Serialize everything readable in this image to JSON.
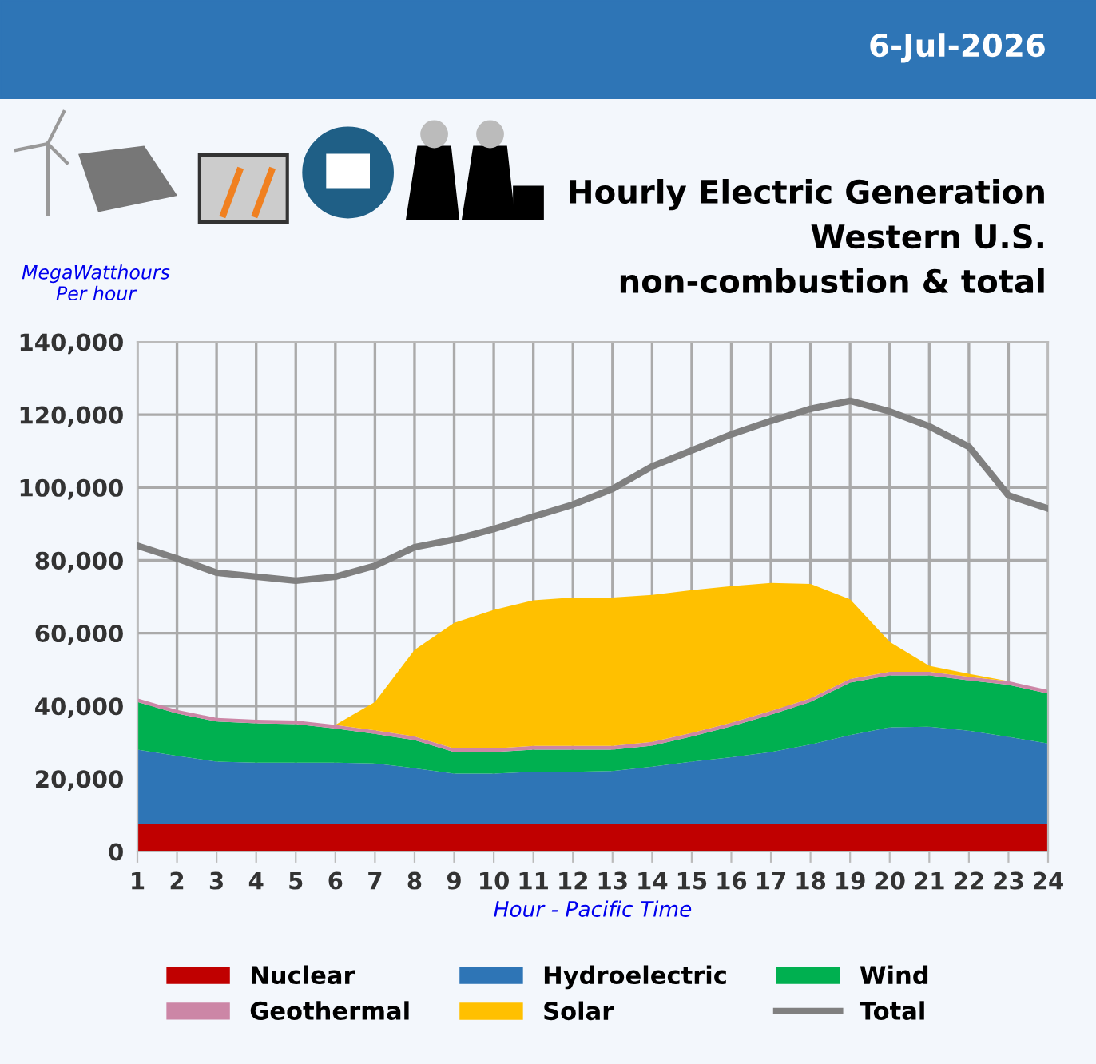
{
  "chart_data": {
    "type": "area",
    "stacked": true,
    "title": "Hourly Electric Generation\nWestern U.S.\nnon-combustion & total",
    "subtitle": "6-Jul-2026",
    "ylabel": "MegaWatthours\nPer hour",
    "xlabel": "Hour - Pacific Time",
    "categories": [
      "1",
      "2",
      "3",
      "4",
      "5",
      "6",
      "7",
      "8",
      "9",
      "10",
      "11",
      "12",
      "13",
      "14",
      "15",
      "16",
      "17",
      "18",
      "19",
      "20",
      "21",
      "22",
      "23",
      "24"
    ],
    "series": [
      {
        "name": "Nuclear",
        "color": "#c00000",
        "values": [
          7500,
          7500,
          7500,
          7500,
          7500,
          7500,
          7500,
          7500,
          7500,
          7500,
          7500,
          7500,
          7500,
          7500,
          7500,
          7500,
          7500,
          7500,
          7500,
          7500,
          7500,
          7500,
          7500,
          7500
        ]
      },
      {
        "name": "Hydroelectric",
        "color": "#2e75b6",
        "values": [
          20500,
          18800,
          17200,
          16900,
          16900,
          16900,
          16700,
          15400,
          13900,
          13900,
          14400,
          14400,
          14600,
          15800,
          17200,
          18400,
          19800,
          21900,
          24500,
          26600,
          26800,
          25700,
          24000,
          22200
        ]
      },
      {
        "name": "Wind",
        "color": "#00b050",
        "values": [
          13100,
          11600,
          11000,
          10800,
          10600,
          9400,
          8100,
          7700,
          5900,
          5900,
          6100,
          6100,
          5900,
          5800,
          6900,
          8500,
          10300,
          11700,
          14400,
          14300,
          14100,
          13800,
          14300,
          13700
        ]
      },
      {
        "name": "Geothermal",
        "color": "#cc86a6",
        "values": [
          1000,
          1000,
          1000,
          1000,
          1000,
          1000,
          1000,
          1000,
          1000,
          1000,
          1000,
          1000,
          1000,
          1000,
          1000,
          1000,
          1000,
          1000,
          1000,
          1000,
          1000,
          1000,
          1000,
          1000
        ]
      },
      {
        "name": "Solar",
        "color": "#ffc000",
        "values": [
          0,
          0,
          0,
          0,
          0,
          0,
          7800,
          23800,
          34500,
          38100,
          40000,
          40800,
          40800,
          40400,
          39200,
          37500,
          35200,
          31400,
          21900,
          8200,
          1600,
          800,
          0,
          0
        ]
      },
      {
        "name": "Total",
        "type": "line",
        "color": "#808080",
        "values": [
          84000,
          80500,
          76600,
          75500,
          74400,
          75500,
          78500,
          83600,
          85700,
          88600,
          92000,
          95300,
          99600,
          105800,
          110200,
          114600,
          118300,
          121600,
          123800,
          120900,
          116800,
          111200,
          97800,
          94200
        ]
      }
    ],
    "ylim": [
      0,
      140000
    ],
    "yticks": [
      {
        "value": 0,
        "label": "0"
      },
      {
        "value": 20000,
        "label": "20,000"
      },
      {
        "value": 40000,
        "label": "40,000"
      },
      {
        "value": 60000,
        "label": "60,000"
      },
      {
        "value": 80000,
        "label": "80,000"
      },
      {
        "value": 100000,
        "label": "100,000"
      },
      {
        "value": 120000,
        "label": "120,000"
      },
      {
        "value": 140000,
        "label": "140,000"
      }
    ],
    "grid": true,
    "legend": "bottom"
  }
}
